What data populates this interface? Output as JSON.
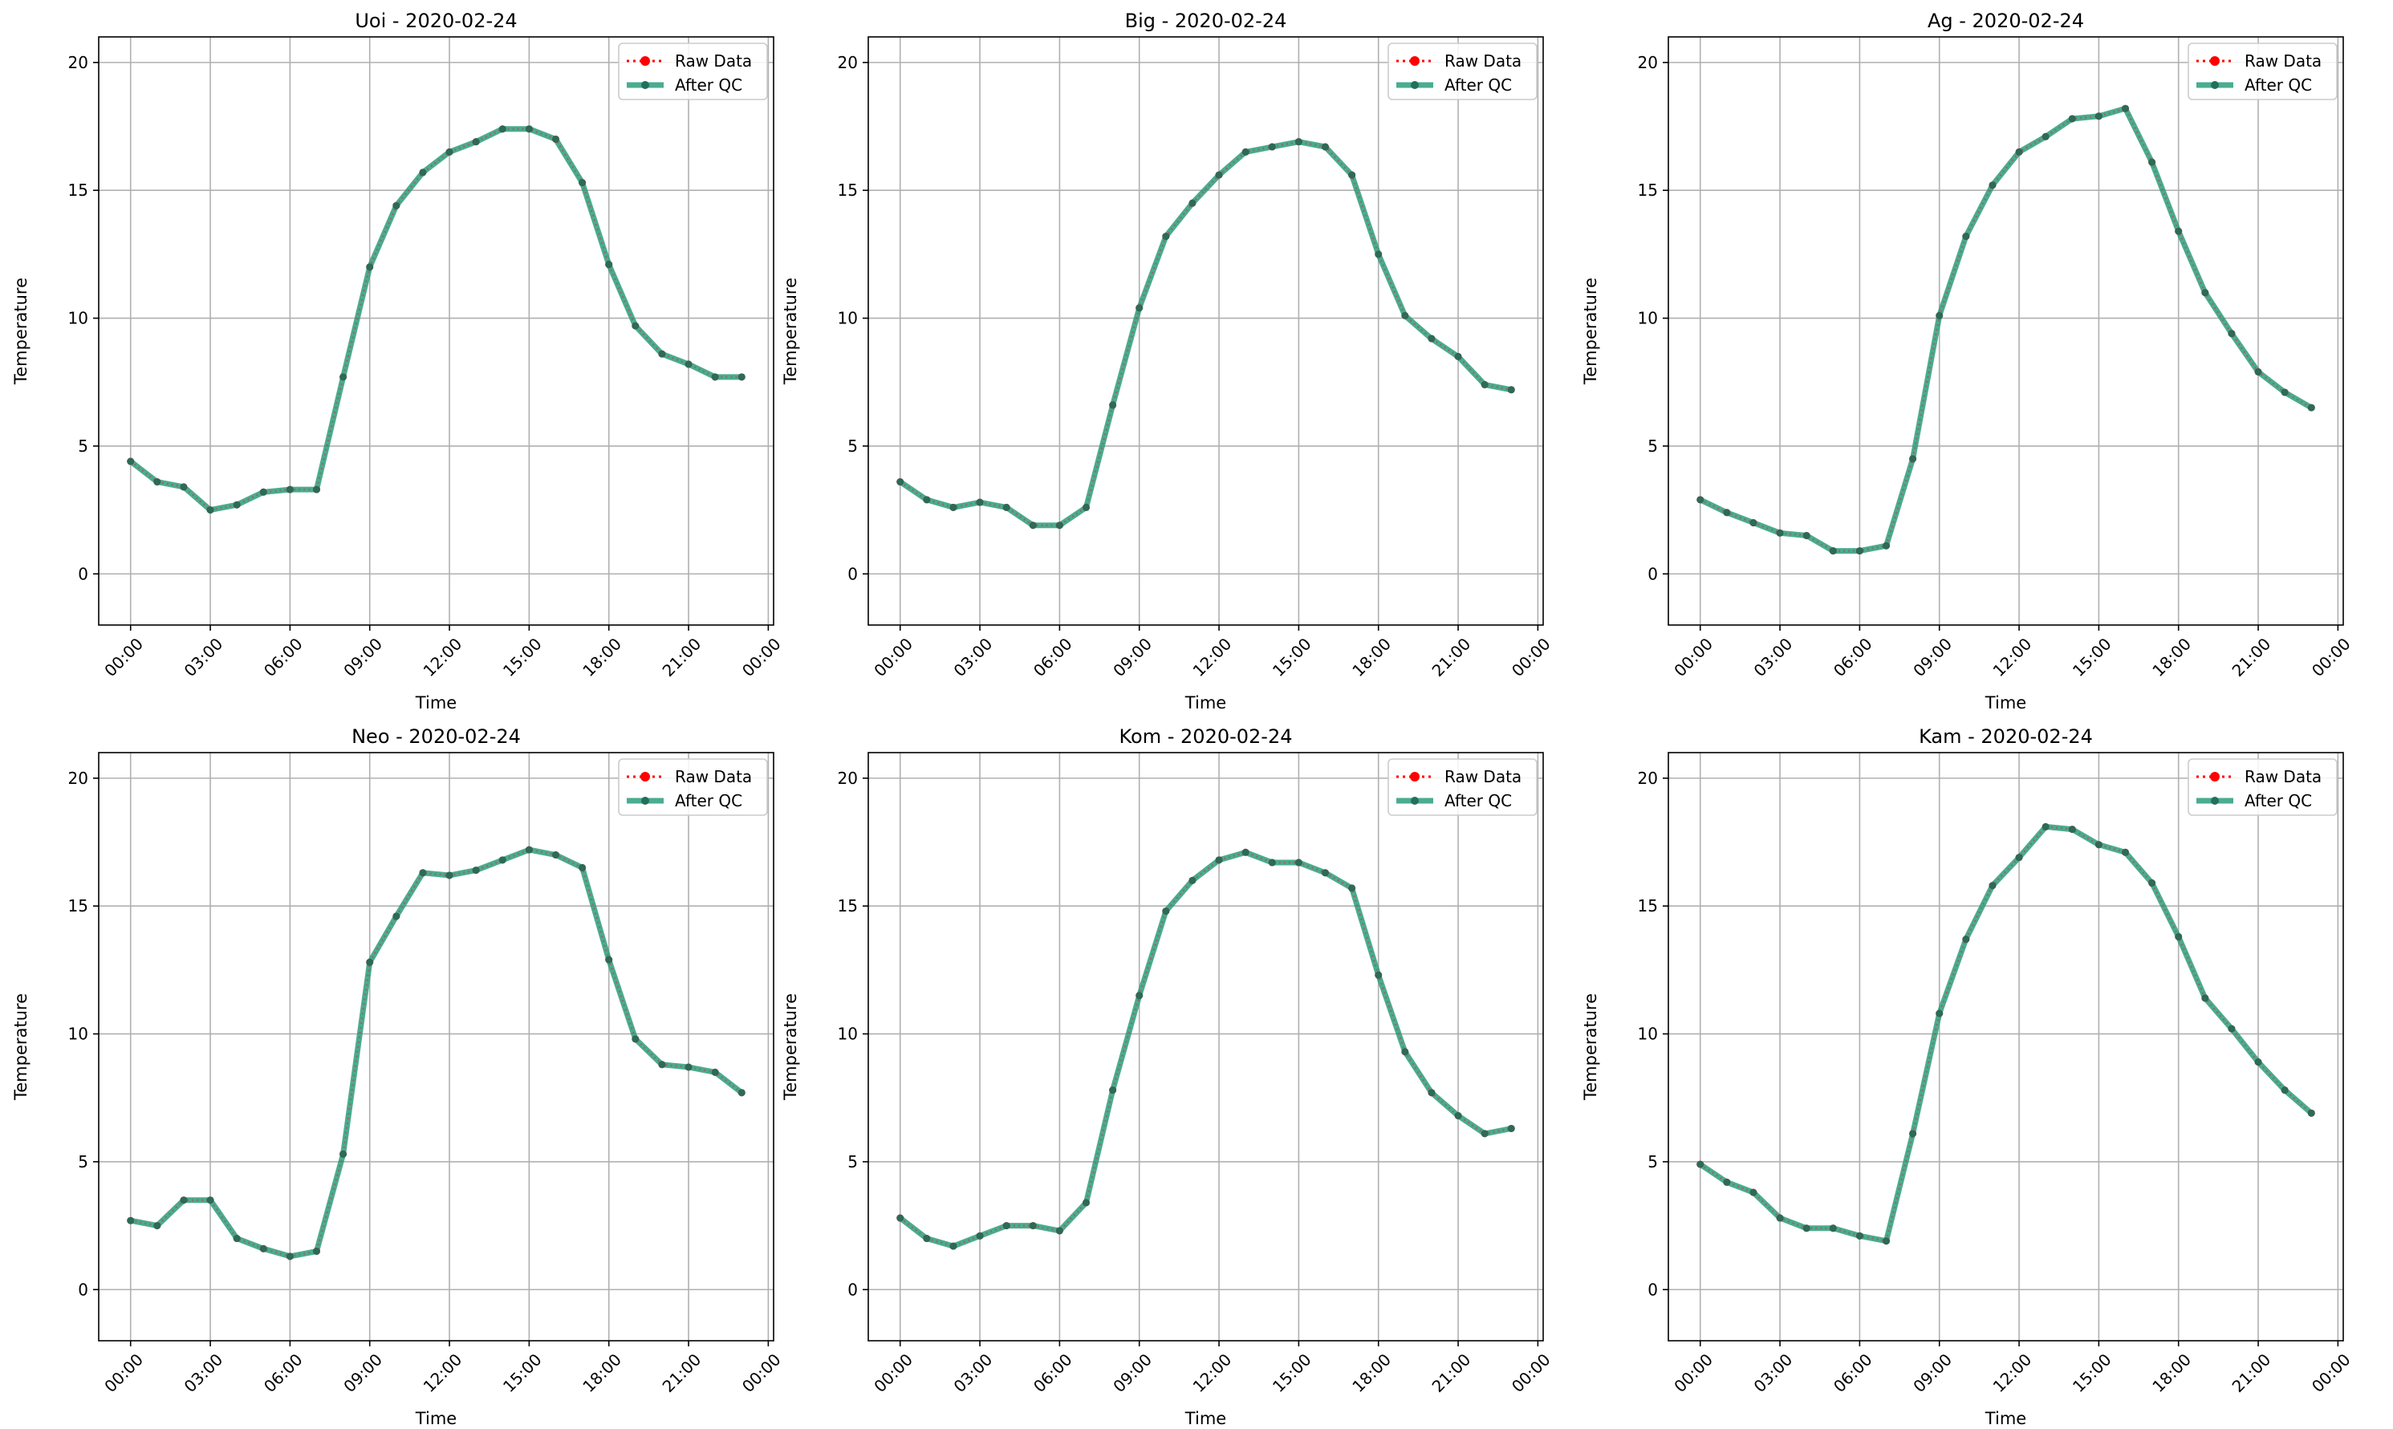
{
  "figure": {
    "background": "#ffffff"
  },
  "colors": {
    "raw": "#ff0000",
    "qc": "#2a9d7c",
    "qc_marker": "#22705c",
    "grid": "#b0b0b0",
    "axis": "#000000"
  },
  "chart_data": [
    {
      "type": "line",
      "title": "Uoi - 2020-02-24",
      "xlabel": "Time",
      "ylabel": "Temperature",
      "ylim": [
        -2,
        21
      ],
      "xlim": [
        -1.2,
        24.2
      ],
      "x_ticks": [
        0,
        3,
        6,
        9,
        12,
        15,
        18,
        21,
        24
      ],
      "x_tick_labels": [
        "00:00",
        "03:00",
        "06:00",
        "09:00",
        "12:00",
        "15:00",
        "18:00",
        "21:00",
        "00:00"
      ],
      "y_ticks": [
        0,
        5,
        10,
        15,
        20
      ],
      "y_tick_labels": [
        "0",
        "5",
        "10",
        "15",
        "20"
      ],
      "grid": true,
      "legend": "upper right",
      "x": [
        "00:00",
        "01:00",
        "02:00",
        "03:00",
        "04:00",
        "05:00",
        "06:00",
        "07:00",
        "08:00",
        "09:00",
        "10:00",
        "11:00",
        "12:00",
        "13:00",
        "14:00",
        "15:00",
        "16:00",
        "17:00",
        "18:00",
        "19:00",
        "20:00",
        "21:00",
        "22:00",
        "23:00"
      ],
      "series": [
        {
          "name": "Raw Data",
          "style": "dotted-marker",
          "values": [
            4.4,
            3.6,
            3.4,
            2.5,
            2.7,
            3.2,
            3.3,
            3.3,
            7.7,
            12.0,
            14.4,
            15.7,
            16.5,
            16.9,
            17.4,
            17.4,
            17.0,
            15.3,
            12.1,
            9.7,
            8.6,
            8.2,
            7.7,
            7.7
          ]
        },
        {
          "name": "After QC",
          "style": "thick-line",
          "values": [
            4.4,
            3.6,
            3.4,
            2.5,
            2.7,
            3.2,
            3.3,
            3.3,
            7.7,
            12.0,
            14.4,
            15.7,
            16.5,
            16.9,
            17.4,
            17.4,
            17.0,
            15.3,
            12.1,
            9.7,
            8.6,
            8.2,
            7.7,
            7.7
          ]
        }
      ]
    },
    {
      "type": "line",
      "title": "Big - 2020-02-24",
      "xlabel": "Time",
      "ylabel": "Temperature",
      "ylim": [
        -2,
        21
      ],
      "xlim": [
        -1.2,
        24.2
      ],
      "x_ticks": [
        0,
        3,
        6,
        9,
        12,
        15,
        18,
        21,
        24
      ],
      "x_tick_labels": [
        "00:00",
        "03:00",
        "06:00",
        "09:00",
        "12:00",
        "15:00",
        "18:00",
        "21:00",
        "00:00"
      ],
      "y_ticks": [
        0,
        5,
        10,
        15,
        20
      ],
      "y_tick_labels": [
        "0",
        "5",
        "10",
        "15",
        "20"
      ],
      "grid": true,
      "legend": "upper right",
      "x": [
        "00:00",
        "01:00",
        "02:00",
        "03:00",
        "04:00",
        "05:00",
        "06:00",
        "07:00",
        "08:00",
        "09:00",
        "10:00",
        "11:00",
        "12:00",
        "13:00",
        "14:00",
        "15:00",
        "16:00",
        "17:00",
        "18:00",
        "19:00",
        "20:00",
        "21:00",
        "22:00",
        "23:00"
      ],
      "series": [
        {
          "name": "Raw Data",
          "style": "dotted-marker",
          "values": [
            3.6,
            2.9,
            2.6,
            2.8,
            2.6,
            1.9,
            1.9,
            2.6,
            6.6,
            10.4,
            13.2,
            14.5,
            15.6,
            16.5,
            16.7,
            16.9,
            16.7,
            15.6,
            12.5,
            10.1,
            9.2,
            8.5,
            7.4,
            7.2
          ]
        },
        {
          "name": "After QC",
          "style": "thick-line",
          "values": [
            3.6,
            2.9,
            2.6,
            2.8,
            2.6,
            1.9,
            1.9,
            2.6,
            6.6,
            10.4,
            13.2,
            14.5,
            15.6,
            16.5,
            16.7,
            16.9,
            16.7,
            15.6,
            12.5,
            10.1,
            9.2,
            8.5,
            7.4,
            7.2
          ]
        }
      ]
    },
    {
      "type": "line",
      "title": "Ag - 2020-02-24",
      "xlabel": "Time",
      "ylabel": "Temperature",
      "ylim": [
        -2,
        21
      ],
      "xlim": [
        -1.2,
        24.2
      ],
      "x_ticks": [
        0,
        3,
        6,
        9,
        12,
        15,
        18,
        21,
        24
      ],
      "x_tick_labels": [
        "00:00",
        "03:00",
        "06:00",
        "09:00",
        "12:00",
        "15:00",
        "18:00",
        "21:00",
        "00:00"
      ],
      "y_ticks": [
        0,
        5,
        10,
        15,
        20
      ],
      "y_tick_labels": [
        "0",
        "5",
        "10",
        "15",
        "20"
      ],
      "grid": true,
      "legend": "upper right",
      "x": [
        "00:00",
        "01:00",
        "02:00",
        "03:00",
        "04:00",
        "05:00",
        "06:00",
        "07:00",
        "08:00",
        "09:00",
        "10:00",
        "11:00",
        "12:00",
        "13:00",
        "14:00",
        "15:00",
        "16:00",
        "17:00",
        "18:00",
        "19:00",
        "20:00",
        "21:00",
        "22:00",
        "23:00"
      ],
      "series": [
        {
          "name": "Raw Data",
          "style": "dotted-marker",
          "values": [
            2.9,
            2.4,
            2.0,
            1.6,
            1.5,
            0.9,
            0.9,
            1.1,
            4.5,
            10.1,
            13.2,
            15.2,
            16.5,
            17.1,
            17.8,
            17.9,
            18.2,
            16.1,
            13.4,
            11.0,
            9.4,
            7.9,
            7.1,
            6.5
          ]
        },
        {
          "name": "After QC",
          "style": "thick-line",
          "values": [
            2.9,
            2.4,
            2.0,
            1.6,
            1.5,
            0.9,
            0.9,
            1.1,
            4.5,
            10.1,
            13.2,
            15.2,
            16.5,
            17.1,
            17.8,
            17.9,
            18.2,
            16.1,
            13.4,
            11.0,
            9.4,
            7.9,
            7.1,
            6.5
          ]
        }
      ]
    },
    {
      "type": "line",
      "title": "Neo - 2020-02-24",
      "xlabel": "Time",
      "ylabel": "Temperature",
      "ylim": [
        -2,
        21
      ],
      "xlim": [
        -1.2,
        24.2
      ],
      "x_ticks": [
        0,
        3,
        6,
        9,
        12,
        15,
        18,
        21,
        24
      ],
      "x_tick_labels": [
        "00:00",
        "03:00",
        "06:00",
        "09:00",
        "12:00",
        "15:00",
        "18:00",
        "21:00",
        "00:00"
      ],
      "y_ticks": [
        0,
        5,
        10,
        15,
        20
      ],
      "y_tick_labels": [
        "0",
        "5",
        "10",
        "15",
        "20"
      ],
      "grid": true,
      "legend": "upper right",
      "x": [
        "00:00",
        "01:00",
        "02:00",
        "03:00",
        "04:00",
        "05:00",
        "06:00",
        "07:00",
        "08:00",
        "09:00",
        "10:00",
        "11:00",
        "12:00",
        "13:00",
        "14:00",
        "15:00",
        "16:00",
        "17:00",
        "18:00",
        "19:00",
        "20:00",
        "21:00",
        "22:00",
        "23:00"
      ],
      "series": [
        {
          "name": "Raw Data",
          "style": "dotted-marker",
          "values": [
            2.7,
            2.5,
            3.5,
            3.5,
            2.0,
            1.6,
            1.3,
            1.5,
            5.3,
            12.8,
            14.6,
            16.3,
            16.2,
            16.4,
            16.8,
            17.2,
            17.0,
            16.5,
            12.9,
            9.8,
            8.8,
            8.7,
            8.5,
            7.7
          ]
        },
        {
          "name": "After QC",
          "style": "thick-line",
          "values": [
            2.7,
            2.5,
            3.5,
            3.5,
            2.0,
            1.6,
            1.3,
            1.5,
            5.3,
            12.8,
            14.6,
            16.3,
            16.2,
            16.4,
            16.8,
            17.2,
            17.0,
            16.5,
            12.9,
            9.8,
            8.8,
            8.7,
            8.5,
            7.7
          ]
        }
      ]
    },
    {
      "type": "line",
      "title": "Kom - 2020-02-24",
      "xlabel": "Time",
      "ylabel": "Temperature",
      "ylim": [
        -2,
        21
      ],
      "xlim": [
        -1.2,
        24.2
      ],
      "x_ticks": [
        0,
        3,
        6,
        9,
        12,
        15,
        18,
        21,
        24
      ],
      "x_tick_labels": [
        "00:00",
        "03:00",
        "06:00",
        "09:00",
        "12:00",
        "15:00",
        "18:00",
        "21:00",
        "00:00"
      ],
      "y_ticks": [
        0,
        5,
        10,
        15,
        20
      ],
      "y_tick_labels": [
        "0",
        "5",
        "10",
        "15",
        "20"
      ],
      "grid": true,
      "legend": "upper right",
      "x": [
        "00:00",
        "01:00",
        "02:00",
        "03:00",
        "04:00",
        "05:00",
        "06:00",
        "07:00",
        "08:00",
        "09:00",
        "10:00",
        "11:00",
        "12:00",
        "13:00",
        "14:00",
        "15:00",
        "16:00",
        "17:00",
        "18:00",
        "19:00",
        "20:00",
        "21:00",
        "22:00",
        "23:00"
      ],
      "series": [
        {
          "name": "Raw Data",
          "style": "dotted-marker",
          "values": [
            2.8,
            2.0,
            1.7,
            2.1,
            2.5,
            2.5,
            2.3,
            3.4,
            7.8,
            11.5,
            14.8,
            16.0,
            16.8,
            17.1,
            16.7,
            16.7,
            16.3,
            15.7,
            12.3,
            9.3,
            7.7,
            6.8,
            6.1,
            6.3
          ]
        },
        {
          "name": "After QC",
          "style": "thick-line",
          "values": [
            2.8,
            2.0,
            1.7,
            2.1,
            2.5,
            2.5,
            2.3,
            3.4,
            7.8,
            11.5,
            14.8,
            16.0,
            16.8,
            17.1,
            16.7,
            16.7,
            16.3,
            15.7,
            12.3,
            9.3,
            7.7,
            6.8,
            6.1,
            6.3
          ]
        }
      ]
    },
    {
      "type": "line",
      "title": "Kam - 2020-02-24",
      "xlabel": "Time",
      "ylabel": "Temperature",
      "ylim": [
        -2,
        21
      ],
      "xlim": [
        -1.2,
        24.2
      ],
      "x_ticks": [
        0,
        3,
        6,
        9,
        12,
        15,
        18,
        21,
        24
      ],
      "x_tick_labels": [
        "00:00",
        "03:00",
        "06:00",
        "09:00",
        "12:00",
        "15:00",
        "18:00",
        "21:00",
        "00:00"
      ],
      "y_ticks": [
        0,
        5,
        10,
        15,
        20
      ],
      "y_tick_labels": [
        "0",
        "5",
        "10",
        "15",
        "20"
      ],
      "grid": true,
      "legend": "upper right",
      "x": [
        "00:00",
        "01:00",
        "02:00",
        "03:00",
        "04:00",
        "05:00",
        "06:00",
        "07:00",
        "08:00",
        "09:00",
        "10:00",
        "11:00",
        "12:00",
        "13:00",
        "14:00",
        "15:00",
        "16:00",
        "17:00",
        "18:00",
        "19:00",
        "20:00",
        "21:00",
        "22:00",
        "23:00"
      ],
      "series": [
        {
          "name": "Raw Data",
          "style": "dotted-marker",
          "values": [
            4.9,
            4.2,
            3.8,
            2.8,
            2.4,
            2.4,
            2.1,
            1.9,
            6.1,
            10.8,
            13.7,
            15.8,
            16.9,
            18.1,
            18.0,
            17.4,
            17.1,
            15.9,
            13.8,
            11.4,
            10.2,
            8.9,
            7.8,
            6.9
          ]
        },
        {
          "name": "After QC",
          "style": "thick-line",
          "values": [
            4.9,
            4.2,
            3.8,
            2.8,
            2.4,
            2.4,
            2.1,
            1.9,
            6.1,
            10.8,
            13.7,
            15.8,
            16.9,
            18.1,
            18.0,
            17.4,
            17.1,
            15.9,
            13.8,
            11.4,
            10.2,
            8.9,
            7.8,
            6.9
          ]
        }
      ]
    }
  ]
}
